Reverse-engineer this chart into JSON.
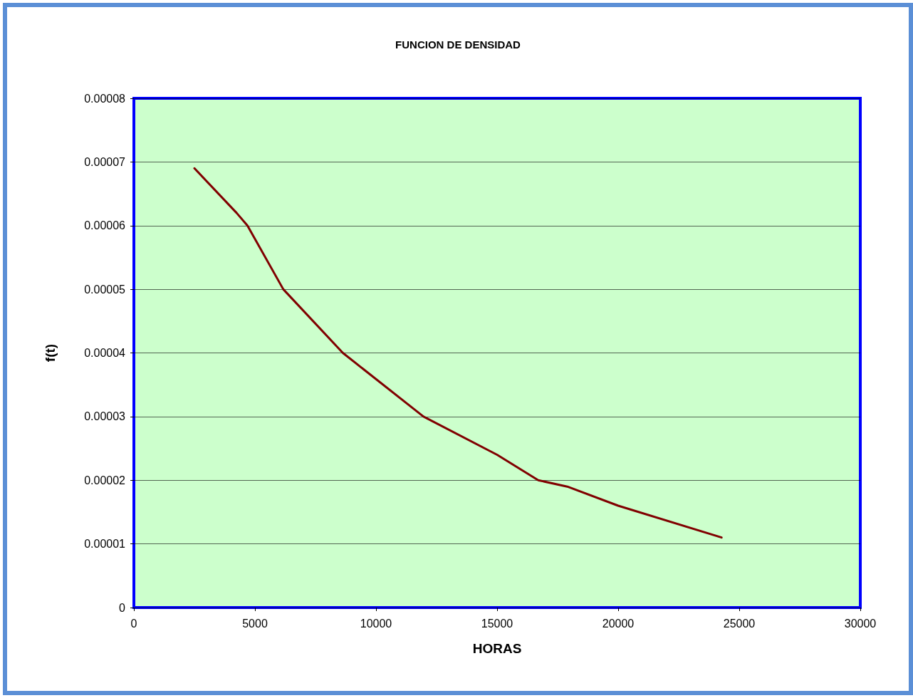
{
  "chart_data": {
    "type": "line",
    "title": "FUNCION DE DENSIDAD",
    "xlabel": "HORAS",
    "ylabel": "f(t)",
    "x": [
      2500,
      4240,
      4690,
      6170,
      8630,
      11960,
      15000,
      16700,
      17900,
      20000,
      24270
    ],
    "series": [
      {
        "color": "#800000",
        "values": [
          6.9e-05,
          6.2e-05,
          6e-05,
          5e-05,
          4e-05,
          3e-05,
          2.4e-05,
          2e-05,
          1.9e-05,
          1.6e-05,
          1.1e-05
        ]
      }
    ],
    "xlim": [
      0,
      30000
    ],
    "xticks": [
      0,
      5000,
      10000,
      15000,
      20000,
      25000,
      30000
    ],
    "ylim": [
      0,
      8e-05
    ],
    "yticks": [
      0,
      {
        "value": 1e-05,
        "label": "0.00001"
      },
      {
        "value": 2e-05,
        "label": "0.00002"
      },
      {
        "value": 3e-05,
        "label": "0.00003"
      },
      {
        "value": 4e-05,
        "label": "0.00004"
      },
      {
        "value": 5e-05,
        "label": "0.00005"
      },
      {
        "value": 6e-05,
        "label": "0.00006"
      },
      {
        "value": 7e-05,
        "label": "0.00007"
      },
      {
        "value": 8e-05,
        "label": "0.00008"
      }
    ],
    "grid": "y",
    "marker": "none",
    "line_style": "solid"
  }
}
